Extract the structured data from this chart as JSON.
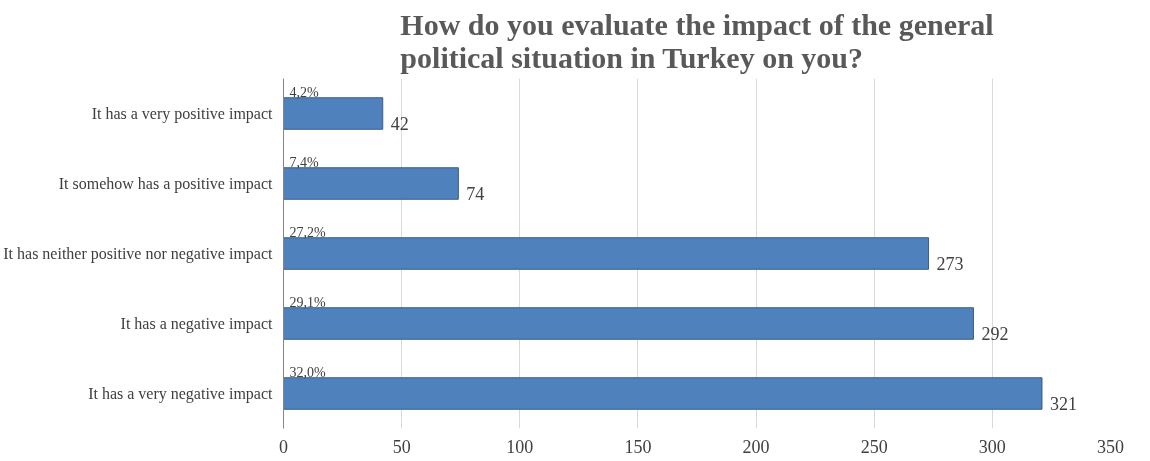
{
  "chart_data": {
    "type": "bar",
    "orientation": "horizontal",
    "title": "How do you evaluate the impact of the general political situation in Turkey on you?",
    "categories": [
      "It has a very positive impact",
      "It somehow has a positive impact",
      "It has neither positive nor negative impact",
      "It has a negative impact",
      "It has a very negative impact"
    ],
    "values": [
      42,
      74,
      273,
      292,
      321
    ],
    "color": "#4f81bd",
    "data_labels": true,
    "annotations": [
      "4,2%",
      "7,4%",
      "27,2%",
      "29,1%",
      "32,0%"
    ],
    "xlim": [
      0,
      350
    ],
    "xticks": [
      0,
      50,
      100,
      150,
      200,
      250,
      300,
      350
    ],
    "grid": "x"
  }
}
